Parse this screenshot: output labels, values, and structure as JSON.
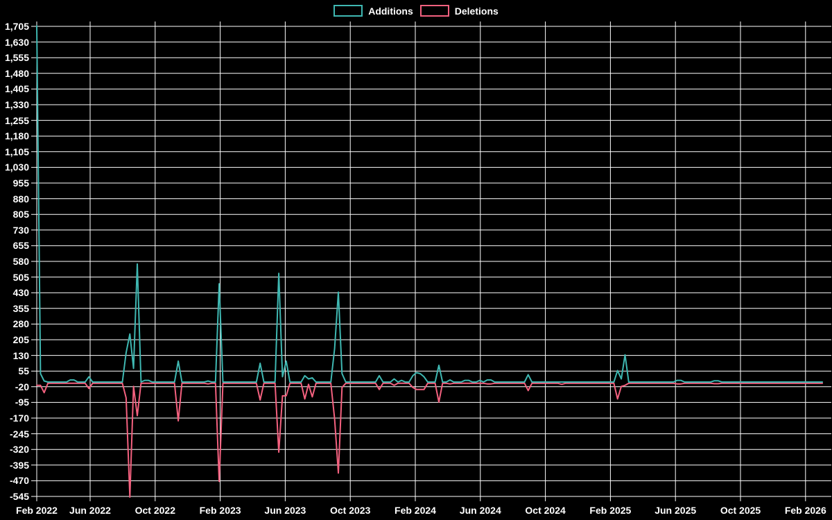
{
  "legend": {
    "items": [
      {
        "label": "Additions",
        "color": "#3FB8B2"
      },
      {
        "label": "Deletions",
        "color": "#F4617F"
      }
    ]
  },
  "colors": {
    "background": "#000000",
    "grid": "#FFFFFF",
    "text": "#FFFFFF"
  },
  "chart_data": {
    "type": "line",
    "title": "",
    "xlabel": "",
    "ylabel": "",
    "grid": true,
    "legend_position": "top-center",
    "x_unit": "week",
    "weeks_total": 212,
    "x_tick_labels": [
      "Feb 2022",
      "Jun 2022",
      "Oct 2022",
      "Feb 2023",
      "Jun 2023",
      "Oct 2023",
      "Feb 2024",
      "Jun 2024",
      "Oct 2024",
      "Feb 2025",
      "Jun 2025",
      "Oct 2025",
      "Feb 2026"
    ],
    "y_axis": {
      "min": -545,
      "max": 1705,
      "step": 75,
      "format": "comma"
    },
    "series": [
      {
        "name": "Additions",
        "color": "#3FB8B2",
        "default": 0,
        "sparse_points": {
          "0": 1705,
          "1": 40,
          "2": 5,
          "9": 10,
          "10": 10,
          "14": 25,
          "24": 140,
          "25": 230,
          "26": 65,
          "27": 565,
          "29": 8,
          "30": 8,
          "38": 100,
          "46": 5,
          "49": 470,
          "60": 90,
          "65": 520,
          "66": 25,
          "67": 100,
          "72": 30,
          "73": 15,
          "74": 20,
          "80": 160,
          "81": 430,
          "82": 40,
          "92": 30,
          "96": 15,
          "98": 8,
          "101": 30,
          "102": 45,
          "103": 40,
          "104": 25,
          "108": 80,
          "111": 10,
          "115": 8,
          "116": 8,
          "119": 8,
          "121": 10,
          "122": 10,
          "132": 35,
          "156": 55,
          "157": 15,
          "158": 130,
          "172": 8,
          "173": 8,
          "182": 6,
          "183": 6
        }
      },
      {
        "name": "Deletions",
        "color": "#F4617F",
        "default": 0,
        "sparse_points": {
          "0": -10,
          "1": -10,
          "2": -45,
          "14": -25,
          "24": -70,
          "25": -545,
          "26": -15,
          "27": -155,
          "38": -180,
          "46": -3,
          "49": -470,
          "60": -80,
          "65": -330,
          "66": -60,
          "67": -60,
          "72": -75,
          "73": -5,
          "74": -65,
          "80": -170,
          "81": -430,
          "82": -20,
          "92": -30,
          "96": -10,
          "101": -20,
          "102": -30,
          "103": -30,
          "104": -30,
          "108": -90,
          "111": -3,
          "121": -3,
          "122": -3,
          "132": -35,
          "141": -5,
          "156": -75,
          "157": -15,
          "158": -10,
          "172": -3,
          "173": -3,
          "182": -2,
          "183": -2
        }
      }
    ]
  }
}
